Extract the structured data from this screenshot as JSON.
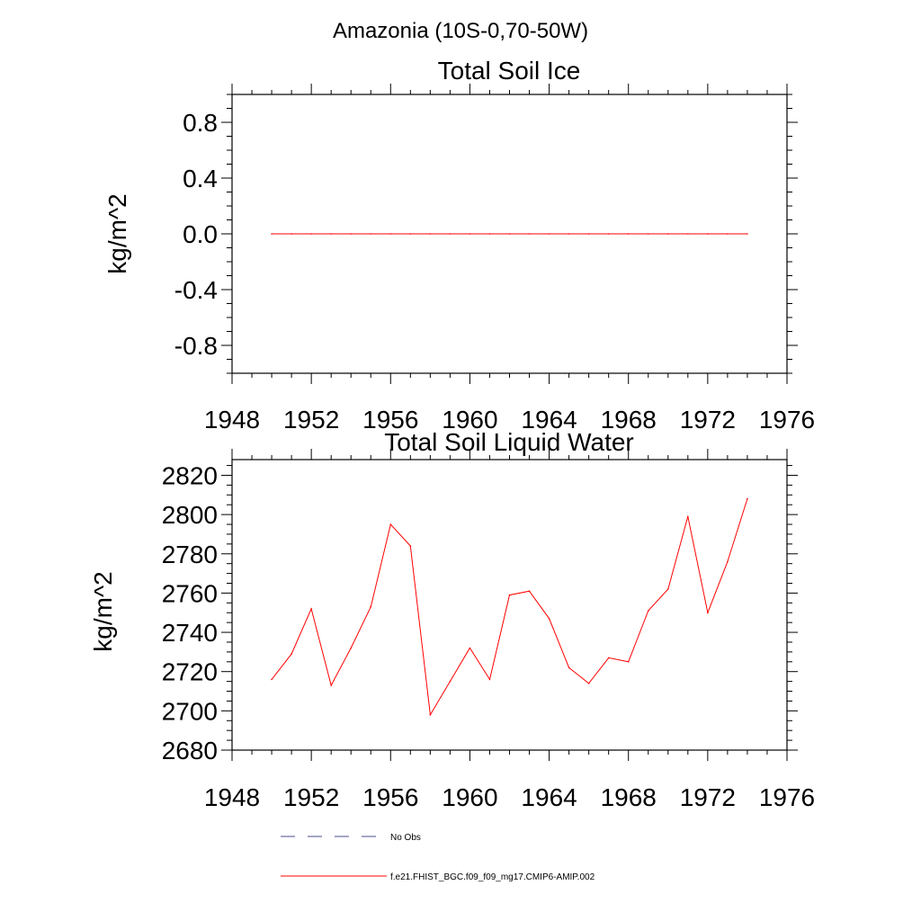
{
  "page_title": "Amazonia (10S-0,70-50W)",
  "colors": {
    "model_line": "#ff0000",
    "obs_line": "#4a4a8c",
    "axis": "#000000"
  },
  "legend": {
    "items": [
      {
        "label": "No Obs",
        "style": "dashed",
        "color": "#4a4a8c"
      },
      {
        "label": "f.e21.FHIST_BGC.f09_f09_mg17.CMIP6-AMIP.002",
        "style": "solid",
        "color": "#ff0000"
      }
    ]
  },
  "chart_data": [
    {
      "type": "line",
      "title": "Total Soil Ice",
      "xlabel": "",
      "ylabel": "kg/m^2",
      "xlim": [
        1948,
        1976
      ],
      "ylim": [
        -1.0,
        1.0
      ],
      "xticks": [
        "1948",
        "1952",
        "1956",
        "1960",
        "1964",
        "1968",
        "1972",
        "1976"
      ],
      "yticks": [
        "0.8",
        "0.4",
        "0.0",
        "-0.4",
        "-0.8"
      ],
      "x": [
        1950,
        1951,
        1952,
        1953,
        1954,
        1955,
        1956,
        1957,
        1958,
        1959,
        1960,
        1961,
        1962,
        1963,
        1964,
        1965,
        1966,
        1967,
        1968,
        1969,
        1970,
        1971,
        1972,
        1973,
        1974
      ],
      "series": [
        {
          "color": "#ff0000",
          "values": [
            0,
            0,
            0,
            0,
            0,
            0,
            0,
            0,
            0,
            0,
            0,
            0,
            0,
            0,
            0,
            0,
            0,
            0,
            0,
            0,
            0,
            0,
            0,
            0,
            0
          ]
        }
      ]
    },
    {
      "type": "line",
      "title": "Total Soil Liquid Water",
      "xlabel": "",
      "ylabel": "kg/m^2",
      "xlim": [
        1948,
        1976
      ],
      "ylim": [
        2680,
        2828
      ],
      "xticks": [
        "1948",
        "1952",
        "1956",
        "1960",
        "1964",
        "1968",
        "1972",
        "1976"
      ],
      "yticks": [
        "2820",
        "2800",
        "2780",
        "2760",
        "2740",
        "2720",
        "2700",
        "2680"
      ],
      "x": [
        1950,
        1951,
        1952,
        1953,
        1954,
        1955,
        1956,
        1957,
        1958,
        1959,
        1960,
        1961,
        1962,
        1963,
        1964,
        1965,
        1966,
        1967,
        1968,
        1969,
        1970,
        1971,
        1972,
        1973,
        1974
      ],
      "series": [
        {
          "color": "#ff0000",
          "values": [
            2716,
            2729,
            2752,
            2713,
            2732,
            2753,
            2795,
            2784,
            2698,
            2715,
            2732,
            2716,
            2759,
            2761,
            2747,
            2722,
            2714,
            2727,
            2725,
            2751,
            2762,
            2799,
            2750,
            2776,
            2808
          ]
        }
      ]
    }
  ]
}
